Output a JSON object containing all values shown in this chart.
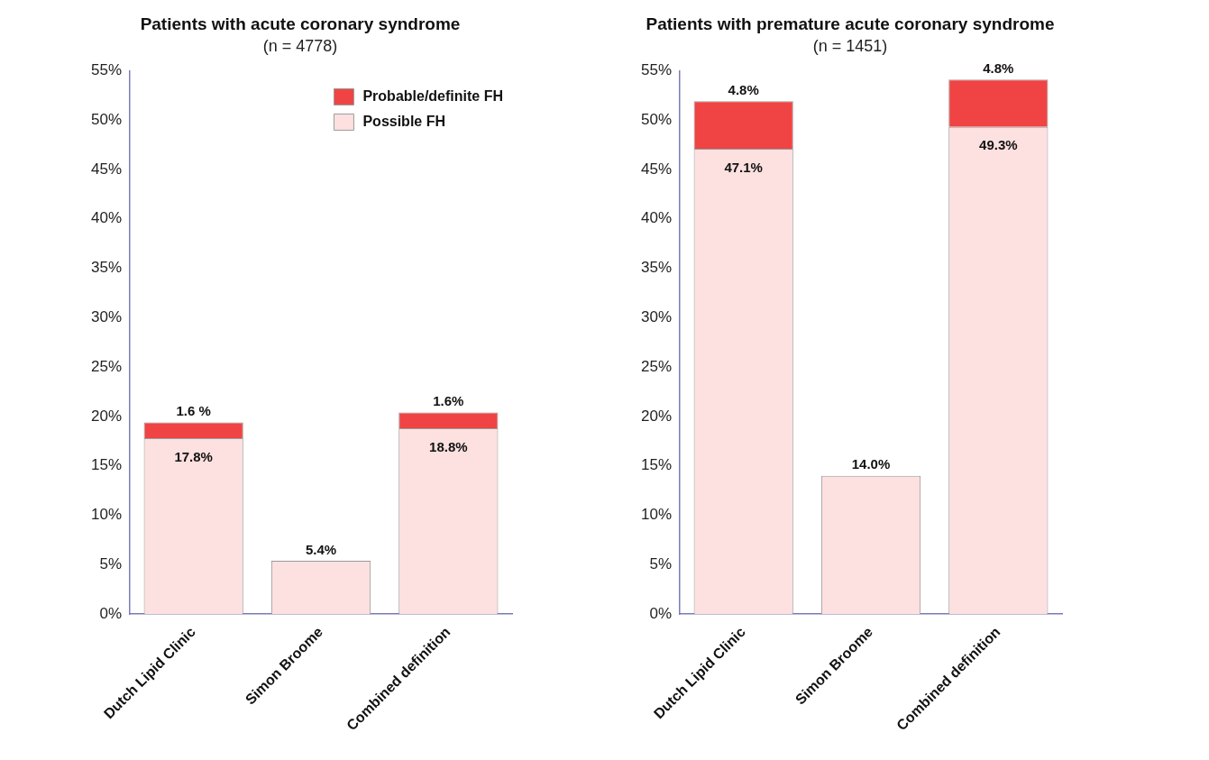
{
  "chart_data": [
    {
      "type": "bar",
      "title": "Patients with acute coronary syndrome",
      "subtitle": "(n = 4778)",
      "categories": [
        "Dutch Lipid Clinic",
        "Simon Broome",
        "Combined definition"
      ],
      "stacked": true,
      "legend": "top right",
      "grid": false,
      "series": [
        {
          "name": "Possible FH",
          "color": "#fde0e0",
          "values": [
            17.8,
            5.4,
            18.8
          ],
          "value_labels": [
            "17.8%",
            "5.4%",
            "18.8%"
          ]
        },
        {
          "name": "Probable/definite FH",
          "color": "#f04343",
          "values": [
            1.6,
            null,
            1.6
          ],
          "value_labels": [
            "1.6 %",
            null,
            "1.6%"
          ]
        }
      ],
      "ylim": [
        0,
        55
      ],
      "yticks": [
        {
          "value": 0,
          "label": "0%"
        },
        {
          "value": 5,
          "label": "5%"
        },
        {
          "value": 10,
          "label": "10%"
        },
        {
          "value": 15,
          "label": "15%"
        },
        {
          "value": 20,
          "label": "20%"
        },
        {
          "value": 25,
          "label": "25%"
        },
        {
          "value": 30,
          "label": "30%"
        },
        {
          "value": 35,
          "label": "35%"
        },
        {
          "value": 40,
          "label": "40%"
        },
        {
          "value": 45,
          "label": "45%"
        },
        {
          "value": 50,
          "label": "50%"
        },
        {
          "value": 55,
          "label": "55%"
        }
      ]
    },
    {
      "type": "bar",
      "title": "Patients with premature acute coronary syndrome",
      "subtitle": "(n = 1451)",
      "categories": [
        "Dutch Lipid Clinic",
        "Simon Broome",
        "Combined definition"
      ],
      "stacked": true,
      "legend": false,
      "grid": false,
      "series": [
        {
          "color": "#fde0e0",
          "values": [
            47.1,
            14.0,
            49.3
          ],
          "value_labels": [
            "47.1%",
            "14.0%",
            "49.3%"
          ]
        },
        {
          "color": "#f04343",
          "values": [
            4.8,
            null,
            4.8
          ],
          "value_labels": [
            "4.8%",
            null,
            "4.8%"
          ]
        }
      ],
      "ylim": [
        0,
        55
      ],
      "yticks": [
        {
          "value": 0,
          "label": "0%"
        },
        {
          "value": 5,
          "label": "5%"
        },
        {
          "value": 10,
          "label": "10%"
        },
        {
          "value": 15,
          "label": "15%"
        },
        {
          "value": 20,
          "label": "20%"
        },
        {
          "value": 25,
          "label": "25%"
        },
        {
          "value": 30,
          "label": "30%"
        },
        {
          "value": 35,
          "label": "35%"
        },
        {
          "value": 40,
          "label": "40%"
        },
        {
          "value": 45,
          "label": "45%"
        },
        {
          "value": 50,
          "label": "50%"
        },
        {
          "value": 55,
          "label": "55%"
        }
      ]
    }
  ]
}
